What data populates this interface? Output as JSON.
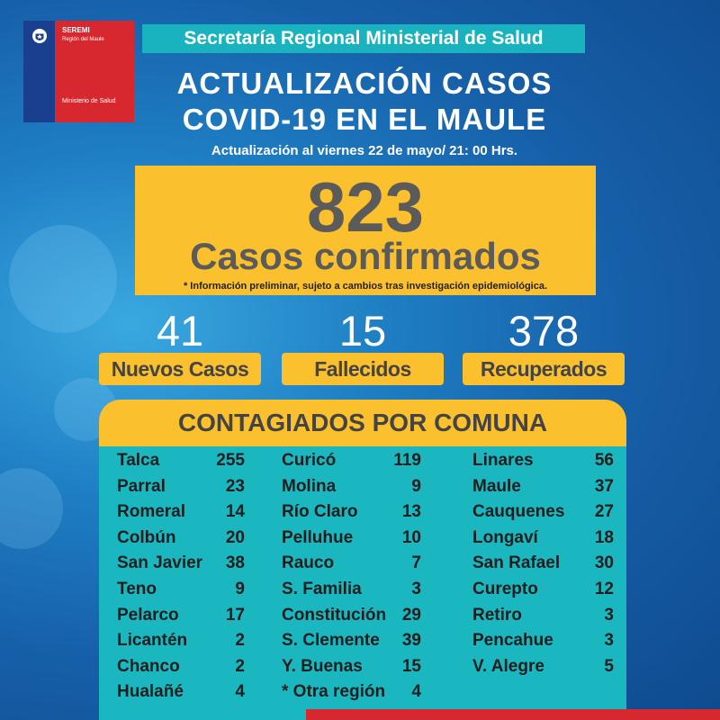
{
  "logo": {
    "line1": "SEREMI",
    "line2": "Región del Maule",
    "line3": "Ministerio de Salud"
  },
  "banner": "Secretaría Regional Ministerial de Salud",
  "title_line1": "ACTUALIZACIÓN CASOS",
  "title_line2": "COVID-19 EN EL MAULE",
  "subtitle": "Actualización al viernes 22 de mayo/ 21: 00 Hrs.",
  "confirmed": {
    "number": "823",
    "label": "Casos confirmados",
    "note": "* Información preliminar, sujeto a cambios tras investigación  epidemiológica."
  },
  "stats": [
    {
      "number": "41",
      "label": "Nuevos Casos"
    },
    {
      "number": "15",
      "label": "Fallecidos"
    },
    {
      "number": "378",
      "label": "Recuperados"
    }
  ],
  "table_title": "CONTAGIADOS POR COMUNA",
  "columns": [
    [
      [
        "Talca",
        "255"
      ],
      [
        "Parral",
        "23"
      ],
      [
        "Romeral",
        "14"
      ],
      [
        "Colbún",
        "20"
      ],
      [
        "San Javier",
        "38"
      ],
      [
        "Teno",
        "9"
      ],
      [
        "Pelarco",
        "17"
      ],
      [
        "Licantén",
        "2"
      ],
      [
        "Chanco",
        "2"
      ],
      [
        "Hualañé",
        "4"
      ]
    ],
    [
      [
        "Curicó",
        "119"
      ],
      [
        "Molina",
        "9"
      ],
      [
        "Río Claro",
        "13"
      ],
      [
        "Pelluhue",
        "10"
      ],
      [
        "Rauco",
        "7"
      ],
      [
        "S. Familia",
        "3"
      ],
      [
        "Constitución",
        "29"
      ],
      [
        "S. Clemente",
        "39"
      ],
      [
        "Y. Buenas",
        "15"
      ],
      [
        "* Otra región",
        "4"
      ]
    ],
    [
      [
        "Linares",
        "56"
      ],
      [
        "Maule",
        "37"
      ],
      [
        "Cauquenes",
        "27"
      ],
      [
        "Longaví",
        "18"
      ],
      [
        "San Rafael",
        "30"
      ],
      [
        "Curepto",
        "12"
      ],
      [
        "Retiro",
        "3"
      ],
      [
        "Pencahue",
        "3"
      ],
      [
        "V. Alegre",
        "5"
      ]
    ]
  ],
  "colors": {
    "yellow": "#fbc02d",
    "teal": "#1bb7c0",
    "red": "#d7282f",
    "blue": "#1b3f8f"
  }
}
